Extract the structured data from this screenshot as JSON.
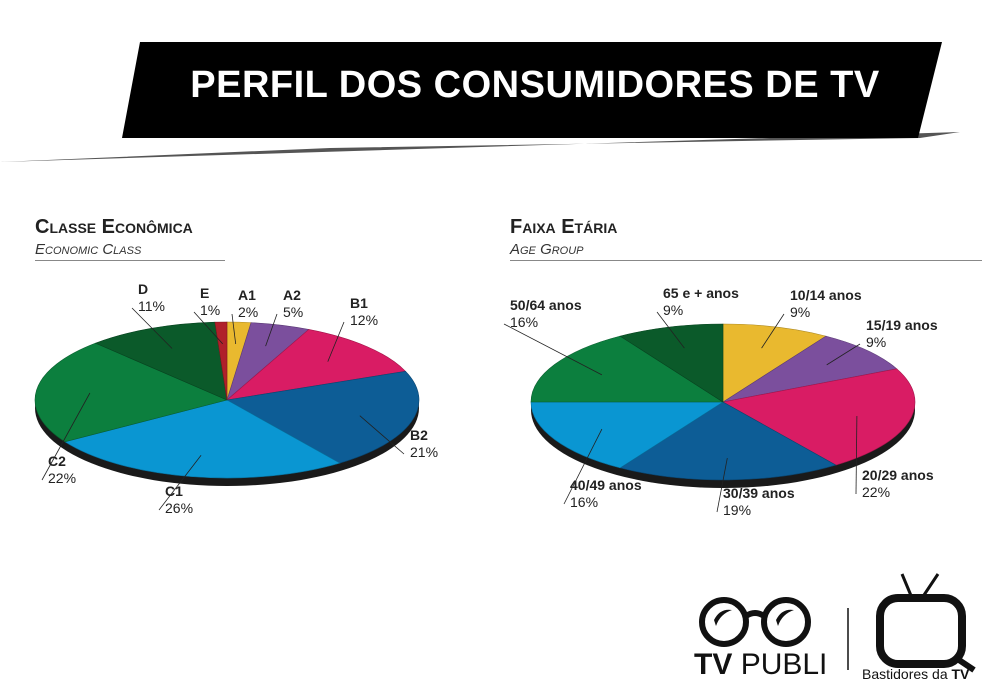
{
  "header": {
    "title": "PERFIL DOS CONSUMIDORES DE TV"
  },
  "chart_data": [
    {
      "type": "pie",
      "title": "Classe Econômica",
      "subtitle": "Economic Class",
      "labels": [
        "A1",
        "A2",
        "B1",
        "B2",
        "C1",
        "C2",
        "D",
        "E"
      ],
      "values": [
        2,
        5,
        12,
        21,
        26,
        22,
        11,
        1
      ],
      "value_labels": [
        "2%",
        "5%",
        "12%",
        "21%",
        "26%",
        "22%",
        "11%",
        "1%"
      ],
      "colors": [
        "#e9b92f",
        "#7b4f9d",
        "#d91c64",
        "#0d5d96",
        "#0a96d2",
        "#0c7f3e",
        "#0b5a2a",
        "#b0202a"
      ]
    },
    {
      "type": "pie",
      "title": "Faixa Etária",
      "subtitle": "Age Group",
      "labels": [
        "10/14 anos",
        "15/19 anos",
        "20/29 anos",
        "30/39 anos",
        "40/49 anos",
        "50/64 anos",
        "65 e + anos"
      ],
      "values": [
        9,
        9,
        22,
        19,
        16,
        16,
        9
      ],
      "value_labels": [
        "9%",
        "9%",
        "22%",
        "19%",
        "16%",
        "16%",
        "9%"
      ],
      "colors": [
        "#e9b92f",
        "#7b4f9d",
        "#d91c64",
        "#0d5d96",
        "#0a96d2",
        "#0c7f3e",
        "#0b5a2a"
      ]
    }
  ],
  "logos": {
    "tvpubli_bold": "TV",
    "tvpubli_rest": "PUBLI",
    "bastidores_text": "Bastidores da",
    "bastidores_bold": "TV"
  }
}
